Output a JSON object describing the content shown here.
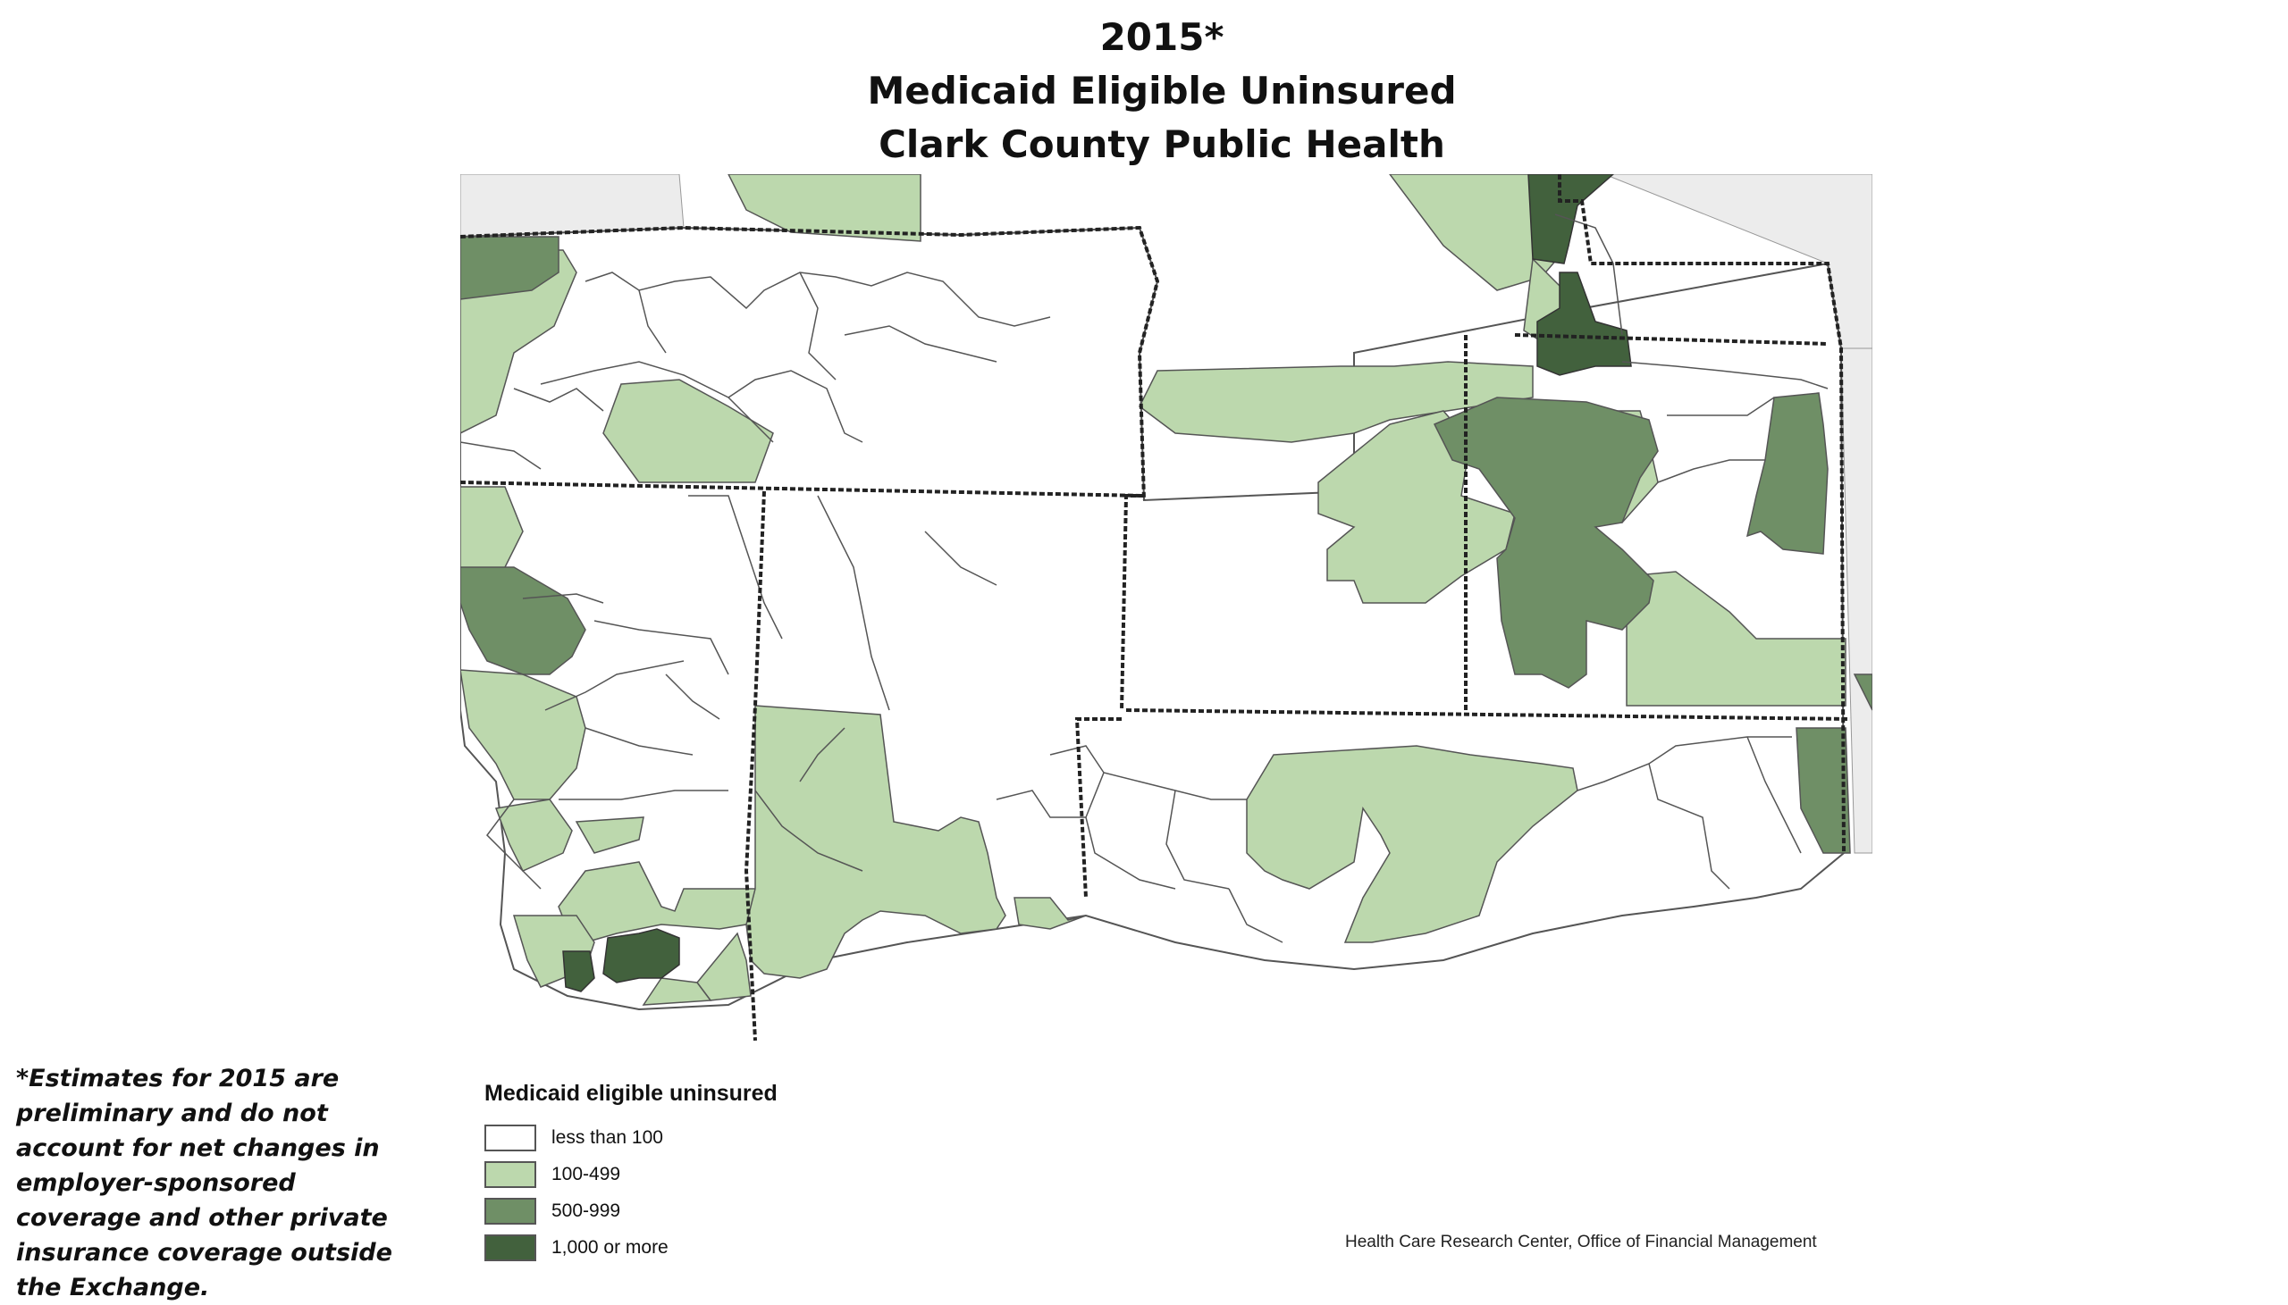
{
  "title": {
    "line1": "2015*",
    "line2": "Medicaid Eligible Uninsured",
    "line3": "Clark County Public Health"
  },
  "note": "*Estimates for 2015 are preliminary and do not account for net changes in employer-sponsored coverage and other private insurance coverage outside the Exchange.",
  "legend": {
    "title": "Medicaid eligible uninsured",
    "items": [
      {
        "label": "less than 100",
        "color": "#ffffff"
      },
      {
        "label": "100-499",
        "color": "#bcd8ad"
      },
      {
        "label": "500-999",
        "color": "#6f8f66"
      },
      {
        "label": "1,000 or more",
        "color": "#42613d"
      }
    ]
  },
  "credit": "Health Care Research Center, Office of Financial Management",
  "colors": {
    "outside": "#ececec",
    "boundary": "#222222",
    "tract_line": "#555555"
  }
}
